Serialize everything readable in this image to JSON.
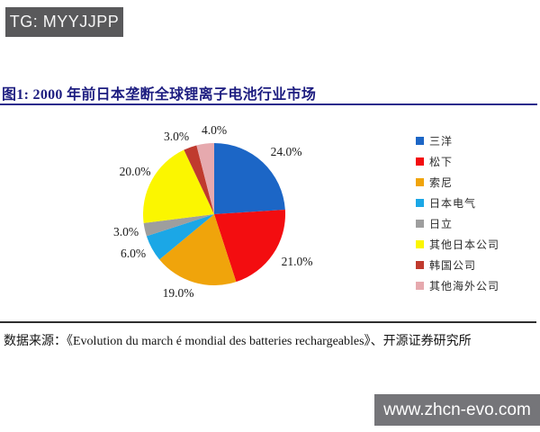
{
  "badges": {
    "telegram": "TG: MYYJJPP",
    "website": "www.zhcn-evo.com"
  },
  "figure": {
    "title": "图1:  2000 年前日本垄断全球锂离子电池行业市场",
    "source": "数据来源：《Evolution du march é mondial des batteries rechargeables》、开源证券研究所"
  },
  "chart_data": {
    "type": "pie",
    "title": "2000 年前日本垄断全球锂离子电池行业市场",
    "start_angle_deg": 0,
    "direction": "clockwise",
    "legend_position": "right",
    "total": 100,
    "slices": [
      {
        "name": "三洋",
        "value": 24.0,
        "label": "24.0%",
        "color": "#1c66c6",
        "label_pos": [
          318,
          169
        ]
      },
      {
        "name": "松下",
        "value": 21.0,
        "label": "21.0%",
        "color": "#f30d10",
        "label_pos": [
          330,
          291
        ]
      },
      {
        "name": "索尼",
        "value": 19.0,
        "label": "19.0%",
        "color": "#f0a40b",
        "label_pos": [
          198,
          326
        ]
      },
      {
        "name": "日本电气",
        "value": 6.0,
        "label": "6.0%",
        "color": "#1ba7e6",
        "label_pos": [
          148,
          282
        ]
      },
      {
        "name": "日立",
        "value": 3.0,
        "label": "3.0%",
        "color": "#9e9e9e",
        "label_pos": [
          140,
          258
        ]
      },
      {
        "name": "其他日本公司",
        "value": 20.0,
        "label": "20.0%",
        "color": "#fbf600",
        "label_pos": [
          150,
          191
        ]
      },
      {
        "name": "韩国公司",
        "value": 3.0,
        "label": "3.0%",
        "color": "#c03a2e",
        "label_pos": [
          196,
          152
        ]
      },
      {
        "name": "其他海外公司",
        "value": 4.0,
        "label": "4.0%",
        "color": "#e6a9ae",
        "label_pos": [
          238,
          145
        ]
      }
    ]
  }
}
